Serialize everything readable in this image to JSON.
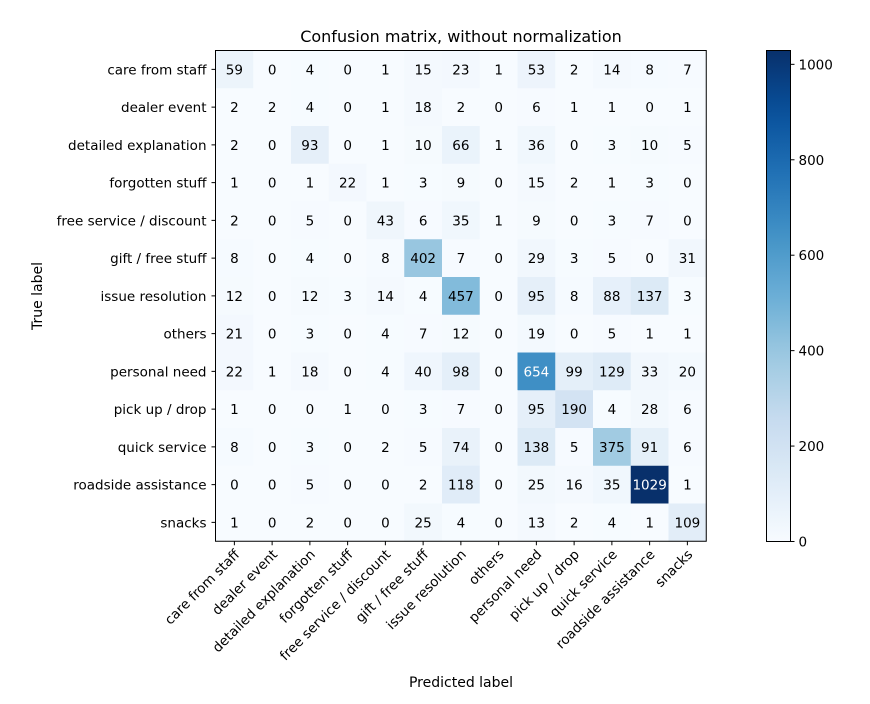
{
  "chart_data": {
    "type": "heatmap",
    "title": "Confusion matrix, without normalization",
    "xlabel": "Predicted label",
    "ylabel": "True label",
    "labels": [
      "care from staff",
      "dealer event",
      "detailed explanation",
      "forgotten stuff",
      "free service / discount",
      "gift / free stuff",
      "issue resolution",
      "others",
      "personal need",
      "pick up / drop",
      "quick service",
      "roadside assistance",
      "snacks"
    ],
    "matrix": [
      [
        59,
        0,
        4,
        0,
        1,
        15,
        23,
        1,
        53,
        2,
        14,
        8,
        7
      ],
      [
        2,
        2,
        4,
        0,
        1,
        18,
        2,
        0,
        6,
        1,
        1,
        0,
        1
      ],
      [
        2,
        0,
        93,
        0,
        1,
        10,
        66,
        1,
        36,
        0,
        3,
        10,
        5
      ],
      [
        1,
        0,
        1,
        22,
        1,
        3,
        9,
        0,
        15,
        2,
        1,
        3,
        0
      ],
      [
        2,
        0,
        5,
        0,
        43,
        6,
        35,
        1,
        9,
        0,
        3,
        7,
        0
      ],
      [
        8,
        0,
        4,
        0,
        8,
        402,
        7,
        0,
        29,
        3,
        5,
        0,
        31
      ],
      [
        12,
        0,
        12,
        3,
        14,
        4,
        457,
        0,
        95,
        8,
        88,
        137,
        3
      ],
      [
        21,
        0,
        3,
        0,
        4,
        7,
        12,
        0,
        19,
        0,
        5,
        1,
        1
      ],
      [
        22,
        1,
        18,
        0,
        4,
        40,
        98,
        0,
        654,
        99,
        129,
        33,
        20
      ],
      [
        1,
        0,
        0,
        1,
        0,
        3,
        7,
        0,
        95,
        190,
        4,
        28,
        6
      ],
      [
        8,
        0,
        3,
        0,
        2,
        5,
        74,
        0,
        138,
        5,
        375,
        91,
        6
      ],
      [
        0,
        0,
        5,
        0,
        0,
        2,
        118,
        0,
        25,
        16,
        35,
        1029,
        1
      ],
      [
        1,
        0,
        2,
        0,
        0,
        25,
        4,
        0,
        13,
        2,
        4,
        1,
        109
      ]
    ],
    "colormap": "Blues",
    "vmin": 0,
    "vmax": 1029,
    "colorbar_ticks": [
      0,
      200,
      400,
      600,
      800,
      1000
    ],
    "text_threshold": 514.5,
    "grid": false,
    "colorbar": "right"
  }
}
